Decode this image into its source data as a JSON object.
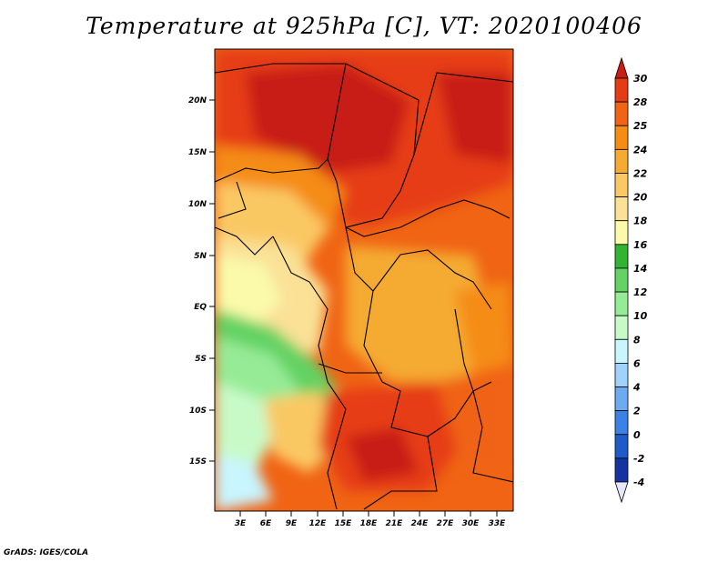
{
  "title": "Temperature at 925hPa [C], VT: 2020100406",
  "footer": "GrADS: IGES/COLA",
  "map": {
    "lon_labels": [
      "3E",
      "6E",
      "9E",
      "12E",
      "15E",
      "18E",
      "21E",
      "24E",
      "27E",
      "30E",
      "33E"
    ],
    "lat_labels": [
      "20N",
      "15N",
      "10N",
      "5N",
      "EQ",
      "5S",
      "10S",
      "15S"
    ]
  },
  "colorbar": {
    "labels": [
      "30",
      "28",
      "25",
      "24",
      "22",
      "20",
      "18",
      "16",
      "14",
      "12",
      "10",
      "8",
      "6",
      "4",
      "2",
      "0",
      "-2",
      "-4"
    ],
    "colors": [
      "#c81e14",
      "#e63c14",
      "#f06414",
      "#f58c14",
      "#f5aa32",
      "#fac864",
      "#fae196",
      "#fafaaa",
      "#32b432",
      "#64d264",
      "#96eb96",
      "#c8fac8",
      "#c8f5ff",
      "#a0d2fa",
      "#6eaaf0",
      "#3c82e6",
      "#1e5ac8",
      "#1432a0",
      "#0a1478",
      "#000064"
    ],
    "low_color": "#e6e6fa",
    "high_color": "#c81e14"
  }
}
